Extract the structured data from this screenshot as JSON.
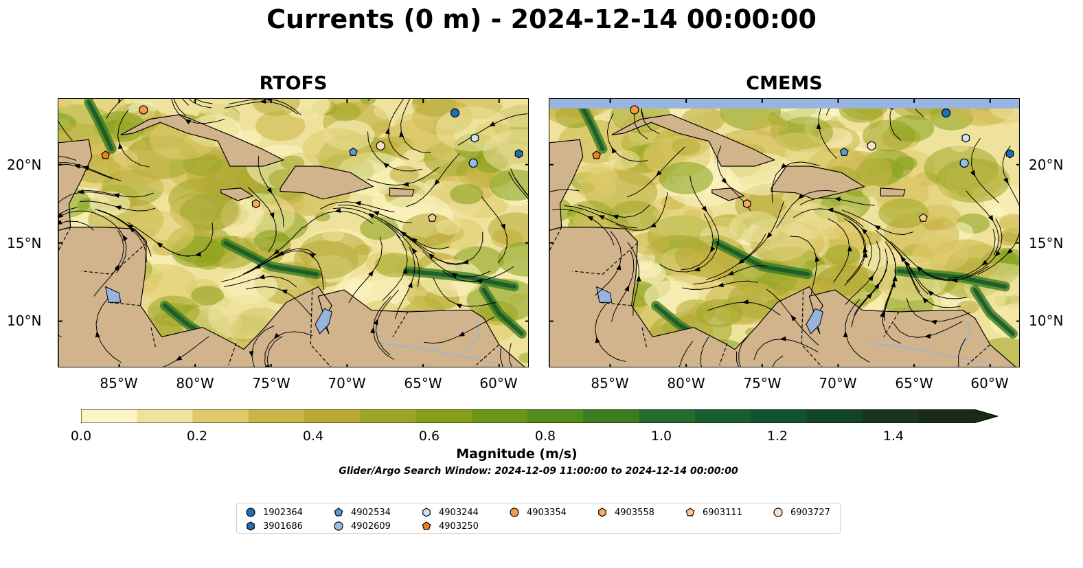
{
  "title": "Currents (0 m) - 2024-12-14 00:00:00",
  "panels": [
    {
      "title": "RTOFS"
    },
    {
      "title": "CMEMS"
    }
  ],
  "lat_ticks": [
    "20°N",
    "15°N",
    "10°N"
  ],
  "lon_ticks": [
    "85°W",
    "80°W",
    "75°W",
    "70°W",
    "65°W",
    "60°W"
  ],
  "colorbar": {
    "label": "Magnitude (m/s)",
    "ticks": [
      "0.0",
      "0.2",
      "0.4",
      "0.6",
      "0.8",
      "1.0",
      "1.2",
      "1.4"
    ],
    "range": [
      0.0,
      1.6
    ],
    "extend": "max",
    "colors": [
      "#fdf6c4",
      "#efe29c",
      "#dfca6b",
      "#cbb447",
      "#b7aa35",
      "#9ea526",
      "#84a019",
      "#6b9617",
      "#528a1c",
      "#3b7d20",
      "#226d2b",
      "#15602e",
      "#11532c",
      "#144428",
      "#173522",
      "#1a2a18"
    ]
  },
  "search_window": "Glider/Argo Search Window: 2024-12-09 11:00:00 to 2024-12-14 00:00:00",
  "map_extent": {
    "lon": [
      -89,
      -58
    ],
    "lat": [
      7,
      24.2
    ]
  },
  "colors": {
    "land": "#d2b48c",
    "water": "#98b4dc",
    "stream": "#000000"
  },
  "floats": [
    {
      "id": "1902364",
      "marker": "circle",
      "color": "#1f6fb5",
      "lon": -62.9,
      "lat": 23.3
    },
    {
      "id": "3901686",
      "marker": "hexagon",
      "color": "#1f6fb5",
      "lon": -58.7,
      "lat": 20.7
    },
    {
      "id": "4902534",
      "marker": "pentagon",
      "color": "#5b9bd5",
      "lon": -69.6,
      "lat": 20.8
    },
    {
      "id": "4902609",
      "marker": "circle",
      "color": "#8ec0e8",
      "lon": -61.7,
      "lat": 20.1
    },
    {
      "id": "4903244",
      "marker": "hexagon",
      "color": "#cde6f7",
      "lon": -61.6,
      "lat": 21.7
    },
    {
      "id": "4903250",
      "marker": "pentagon",
      "color": "#f07f1e",
      "lon": -85.9,
      "lat": 20.6
    },
    {
      "id": "4903354",
      "marker": "circle",
      "color": "#f59a45",
      "lon": -83.4,
      "lat": 23.5
    },
    {
      "id": "4903558",
      "marker": "hexagon",
      "color": "#f9a85e",
      "lon": -76.0,
      "lat": 17.5
    },
    {
      "id": "6903111",
      "marker": "pentagon",
      "color": "#fbc79a",
      "lon": -64.4,
      "lat": 16.6
    },
    {
      "id": "6903727",
      "marker": "circle",
      "color": "#fde0c8",
      "lon": -67.8,
      "lat": 21.2
    }
  ]
}
